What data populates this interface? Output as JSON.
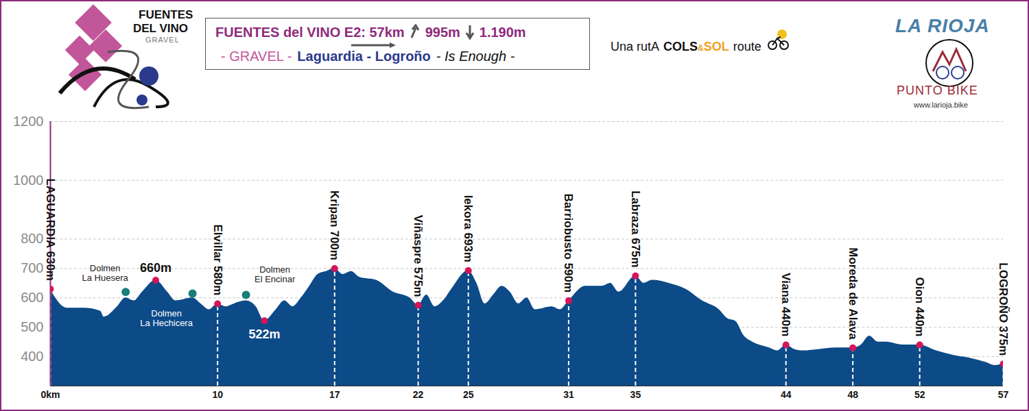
{
  "chart_data": {
    "type": "area",
    "title": "FUENTES del VINO E2: 57km",
    "ascent": "995m",
    "descent": "1.190m",
    "subtitle": [
      "- GRAVEL -",
      "Laguardia - Logroño",
      "- Is Enough -"
    ],
    "logo": [
      "FUENTES",
      "DEL VINO",
      "GRAVEL"
    ],
    "brand": [
      "Una rutA",
      "COLS",
      "&",
      "SOL",
      "route"
    ],
    "region": "LA RIOJA",
    "shop": "PUNTO BIKE",
    "website": "www.larioja.bike",
    "color": "#0d4a88",
    "x": [
      0,
      0.3,
      1,
      2,
      3,
      3.2,
      4,
      4.5,
      5,
      5.5,
      6.3,
      7,
      7.5,
      8.5,
      9,
      9.5,
      10,
      10.5,
      11,
      11.7,
      12.3,
      12.8,
      13.5,
      14,
      14.5,
      15,
      15.5,
      16,
      16.5,
      17,
      17.5,
      18,
      18.5,
      19.5,
      20.5,
      21.5,
      22,
      22.5,
      23,
      23.5,
      24,
      25,
      25.5,
      26,
      26.5,
      27,
      27.5,
      28,
      28.5,
      29,
      30,
      30.5,
      31,
      32,
      33,
      33.5,
      34,
      35,
      35.5,
      36,
      37,
      38,
      39,
      40,
      40.5,
      41,
      41.5,
      42,
      43,
      43.5,
      44,
      44.5,
      45,
      46,
      47,
      48,
      48.5,
      49,
      49.5,
      50,
      51,
      52,
      53,
      54,
      55,
      56,
      56.5,
      57
    ],
    "values": [
      630,
      600,
      565,
      565,
      555,
      535,
      570,
      600,
      590,
      620,
      660,
      620,
      590,
      600,
      580,
      560,
      580,
      570,
      580,
      590,
      570,
      522,
      560,
      590,
      570,
      600,
      640,
      680,
      690,
      700,
      680,
      690,
      670,
      660,
      620,
      600,
      575,
      610,
      570,
      590,
      630,
      693,
      650,
      580,
      610,
      640,
      620,
      580,
      600,
      560,
      570,
      560,
      590,
      640,
      640,
      650,
      620,
      675,
      650,
      660,
      650,
      630,
      590,
      560,
      530,
      520,
      470,
      450,
      430,
      420,
      440,
      425,
      420,
      425,
      430,
      430,
      440,
      470,
      450,
      450,
      440,
      440,
      420,
      405,
      395,
      380,
      370,
      375
    ],
    "xlim": [
      0,
      57
    ],
    "xticks": [
      {
        "value": 0,
        "label": "0km"
      },
      10,
      17,
      22,
      25,
      31,
      35,
      44,
      48,
      52,
      57
    ],
    "ylim": [
      300,
      1200
    ],
    "yticks": [
      400,
      500,
      600,
      700,
      800,
      1000,
      1200
    ],
    "grid": true,
    "waypoints": [
      {
        "name": "LAGUARDIA",
        "x": 0,
        "value": 630,
        "label": "630m"
      },
      {
        "name": "Elvillar",
        "x": 10,
        "value": 580,
        "label": "580m"
      },
      {
        "name": "Kripan",
        "x": 17,
        "value": 700,
        "label": "700m"
      },
      {
        "name": "Viñaspre",
        "x": 22,
        "value": 575,
        "label": "575m"
      },
      {
        "name": "Iekora",
        "x": 25,
        "value": 693,
        "label": "693m"
      },
      {
        "name": "Barriobusto",
        "x": 31,
        "value": 590,
        "label": "590m"
      },
      {
        "name": "Labraza",
        "x": 35,
        "value": 675,
        "label": "675m"
      },
      {
        "name": "Viana",
        "x": 44,
        "value": 440,
        "label": "440m"
      },
      {
        "name": "Moreda de Alava",
        "x": 48,
        "value": 430,
        "label": null
      },
      {
        "name": "Oion",
        "x": 52,
        "value": 440,
        "label": "440m"
      },
      {
        "name": "LOGROÑO",
        "x": 57,
        "value": 375,
        "label": "375m"
      }
    ],
    "spot_heights": [
      {
        "x": 6.3,
        "value": 660,
        "label": "660m"
      },
      {
        "x": 12.8,
        "value": 522,
        "label": "522m"
      }
    ],
    "dolmens": [
      {
        "name": [
          "Dolmen",
          "La Huesera"
        ],
        "x": 4.5,
        "value": 620
      },
      {
        "name": [
          "Dolmen",
          "La Hechicera"
        ],
        "x": 8.5,
        "value": 615
      },
      {
        "name": [
          "Dolmen",
          "El Encinar"
        ],
        "x": 11.7,
        "value": 610
      }
    ]
  }
}
